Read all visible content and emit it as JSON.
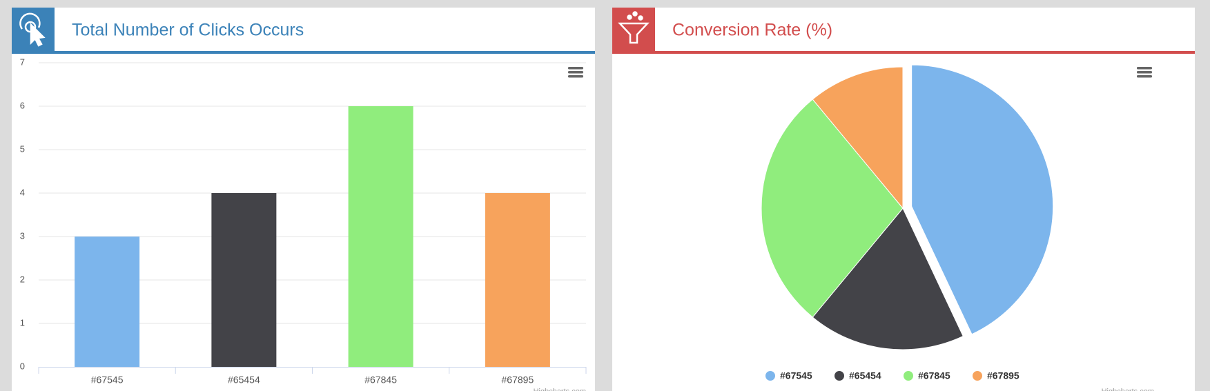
{
  "chart_data": [
    {
      "type": "bar",
      "title": "Total Number of Clicks Occurs",
      "categories": [
        "#67545",
        "#65454",
        "#67845",
        "#67895"
      ],
      "values": [
        3,
        4,
        6,
        4
      ],
      "colors": [
        "#7cb5ec",
        "#434348",
        "#90ed7d",
        "#f7a35c"
      ],
      "ylim": [
        0,
        7
      ],
      "yticks": [
        0,
        1,
        2,
        3,
        4,
        5,
        6,
        7
      ],
      "grid": true,
      "credits": "Highcharts.com"
    },
    {
      "type": "pie",
      "title": "Conversion Rate (%)",
      "categories": [
        "#67545",
        "#65454",
        "#67845",
        "#67895"
      ],
      "values": [
        43,
        18,
        28,
        11
      ],
      "colors": [
        "#7cb5ec",
        "#434348",
        "#90ed7d",
        "#f7a35c"
      ],
      "sliced": [
        true,
        false,
        false,
        false
      ],
      "legend": "bottom",
      "credits": "Highcharts.com"
    }
  ]
}
